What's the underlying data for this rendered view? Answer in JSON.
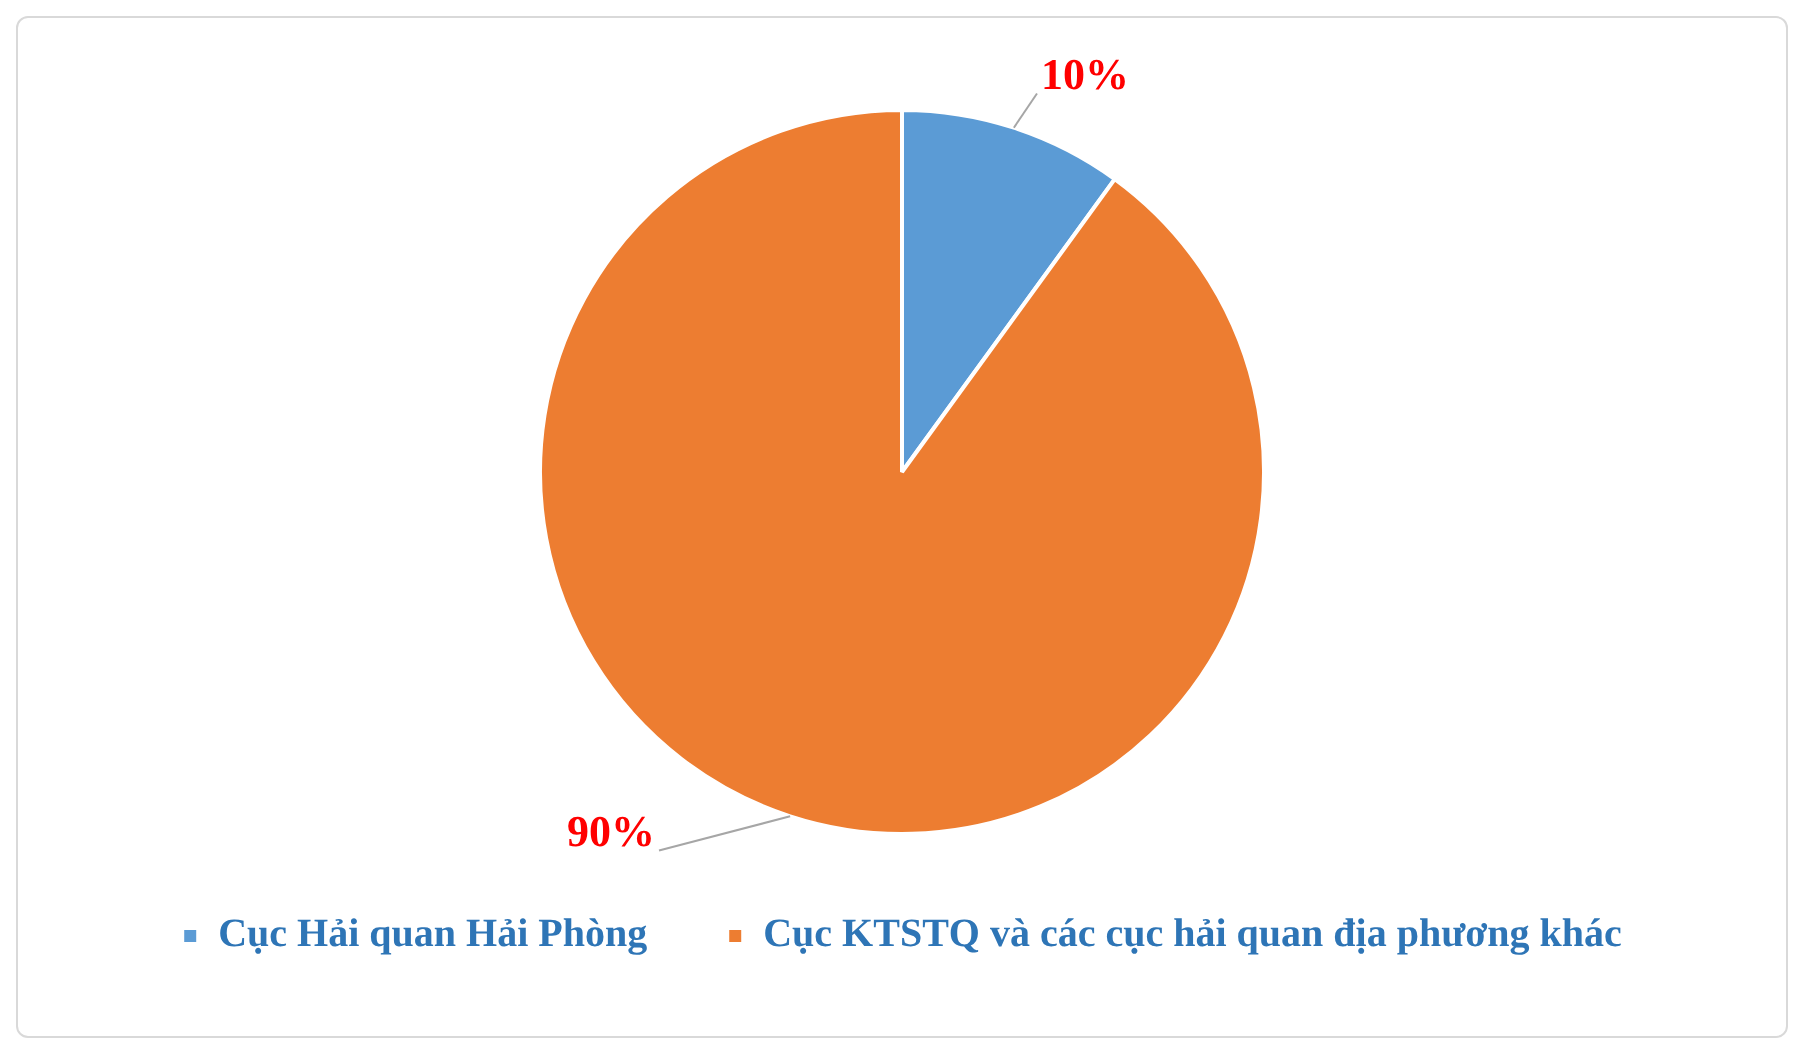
{
  "chart_data": {
    "type": "pie",
    "categories": [
      "Cục Hải quan Hải Phòng",
      "Cục KTSTQ và các cục hải quan địa phương khác"
    ],
    "values": [
      10,
      90
    ],
    "colors": [
      "#5b9bd5",
      "#ed7d31"
    ],
    "value_labels": [
      "10%",
      "90%"
    ],
    "legend": "bottom"
  }
}
